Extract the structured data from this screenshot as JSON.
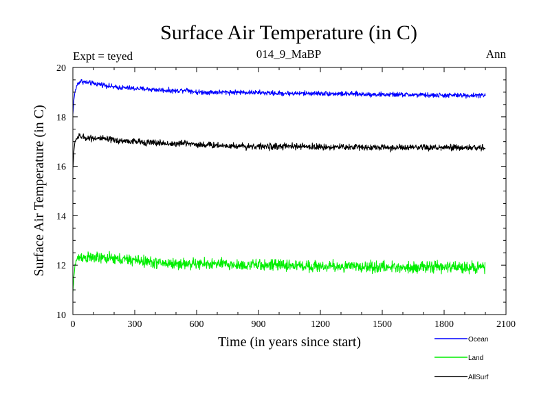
{
  "chart_data": {
    "type": "line",
    "title": "Surface Air Temperature (in C)",
    "subtitle": "014_9_MaBP",
    "experiment_label": "Expt = teyed",
    "period_label": "Ann",
    "xlabel": "Time (in years since start)",
    "ylabel": "Surface Air Temperature (in C)",
    "xlim": [
      0,
      2100
    ],
    "ylim": [
      10,
      20
    ],
    "x_ticks": [
      0,
      300,
      600,
      900,
      1200,
      1500,
      1800,
      2100
    ],
    "y_ticks": [
      10,
      12,
      14,
      16,
      18,
      20
    ],
    "legend_position": "bottom-right",
    "series": [
      {
        "name": "Ocean",
        "color": "#0000ff",
        "x": [
          0,
          5,
          10,
          20,
          30,
          40,
          60,
          100,
          150,
          200,
          300,
          400,
          500,
          550,
          600,
          700,
          800,
          900,
          1000,
          1100,
          1200,
          1300,
          1400,
          1500,
          1600,
          1700,
          1800,
          1900,
          2000
        ],
        "values": [
          18.1,
          18.7,
          19.0,
          19.3,
          19.4,
          19.45,
          19.4,
          19.35,
          19.3,
          19.2,
          19.15,
          19.1,
          19.05,
          19.1,
          19.0,
          19.0,
          19.0,
          18.98,
          18.95,
          18.95,
          18.95,
          18.93,
          18.92,
          18.9,
          18.9,
          18.88,
          18.87,
          18.87,
          18.87
        ],
        "noise": 0.06
      },
      {
        "name": "Land",
        "color": "#00ee00",
        "x": [
          0,
          5,
          10,
          20,
          30,
          40,
          60,
          100,
          150,
          200,
          300,
          400,
          500,
          600,
          700,
          800,
          900,
          1000,
          1100,
          1200,
          1300,
          1400,
          1500,
          1600,
          1700,
          1800,
          1900,
          2000
        ],
        "values": [
          10.9,
          11.5,
          12.0,
          12.25,
          12.3,
          12.35,
          12.3,
          12.3,
          12.28,
          12.25,
          12.2,
          12.1,
          12.05,
          12.05,
          12.05,
          12.0,
          12.0,
          12.0,
          11.98,
          11.95,
          11.95,
          11.93,
          11.92,
          11.92,
          11.92,
          11.92,
          11.92,
          11.92
        ],
        "noise": 0.14
      },
      {
        "name": "AllSurf",
        "color": "#000000",
        "x": [
          0,
          5,
          10,
          20,
          30,
          40,
          60,
          100,
          150,
          200,
          300,
          400,
          500,
          550,
          600,
          700,
          800,
          900,
          1000,
          1100,
          1200,
          1300,
          1400,
          1500,
          1600,
          1700,
          1800,
          1900,
          2000
        ],
        "values": [
          15.9,
          16.6,
          17.0,
          17.15,
          17.2,
          17.2,
          17.15,
          17.15,
          17.1,
          17.05,
          17.0,
          16.95,
          16.9,
          16.95,
          16.88,
          16.85,
          16.82,
          16.8,
          16.8,
          16.8,
          16.78,
          16.78,
          16.78,
          16.76,
          16.75,
          16.75,
          16.75,
          16.75,
          16.75
        ],
        "noise": 0.08
      }
    ]
  }
}
